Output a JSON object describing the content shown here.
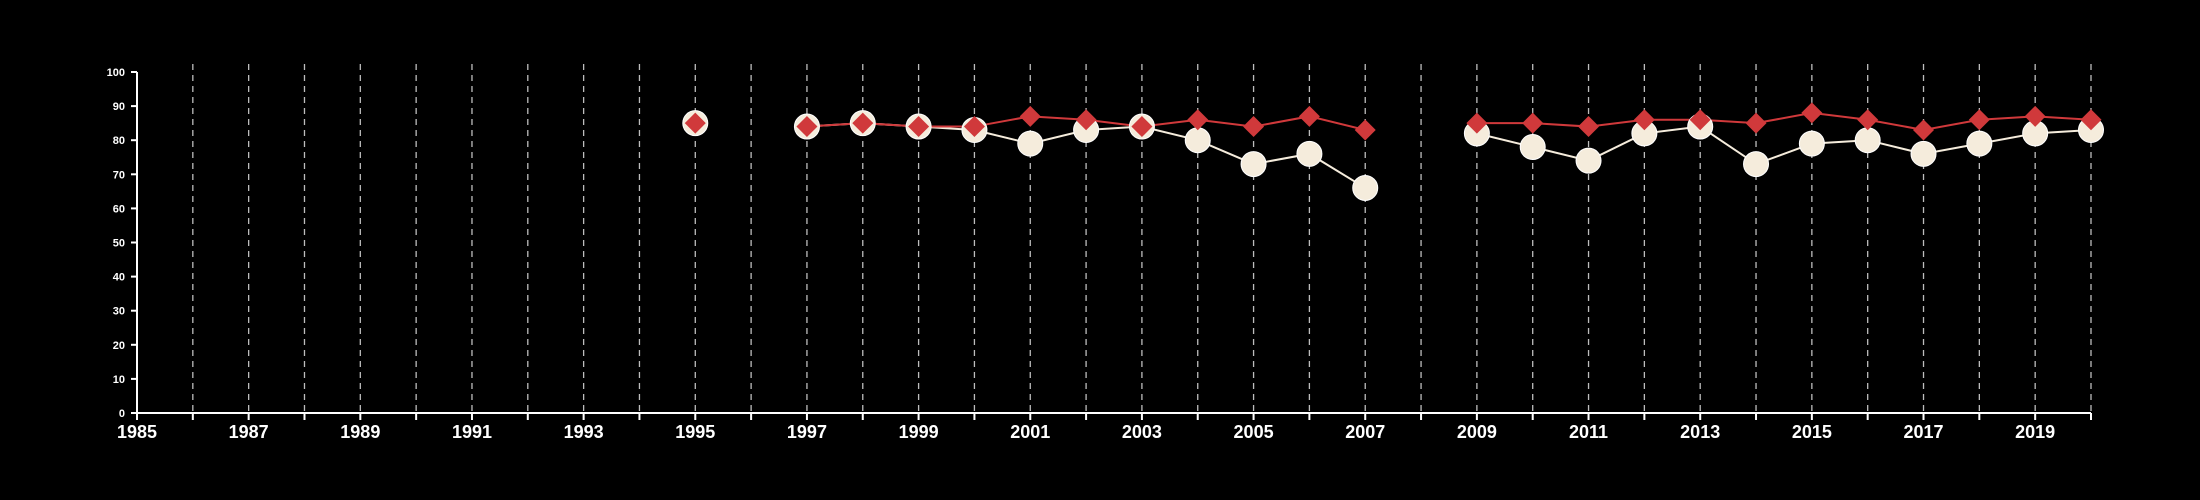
{
  "chart_data": {
    "type": "line",
    "title": "",
    "xlabel": "",
    "ylabel": "",
    "xlim": [
      1985,
      2020
    ],
    "ylim": [
      0,
      100
    ],
    "x_ticks": [
      1985,
      1987,
      1989,
      1991,
      1993,
      1995,
      1997,
      1999,
      2001,
      2003,
      2005,
      2007,
      2009,
      2011,
      2013,
      2015,
      2017,
      2019
    ],
    "y_ticks": [
      0,
      10,
      20,
      30,
      40,
      50,
      60,
      70,
      80,
      90,
      100
    ],
    "grid": "vertical dashed at every year",
    "background": "#000000",
    "series": [
      {
        "marker": "circle",
        "color": "#f5ecdc",
        "points": [
          [
            1995,
            85
          ],
          [
            1997,
            84
          ],
          [
            1998,
            85
          ],
          [
            1999,
            84
          ],
          [
            2000,
            83
          ],
          [
            2001,
            79
          ],
          [
            2002,
            83
          ],
          [
            2003,
            84
          ],
          [
            2004,
            80
          ],
          [
            2005,
            73
          ],
          [
            2006,
            76
          ],
          [
            2007,
            66
          ],
          [
            2009,
            82
          ],
          [
            2010,
            78
          ],
          [
            2011,
            74
          ],
          [
            2012,
            82
          ],
          [
            2013,
            84
          ],
          [
            2014,
            73
          ],
          [
            2015,
            79
          ],
          [
            2016,
            80
          ],
          [
            2017,
            76
          ],
          [
            2018,
            79
          ],
          [
            2019,
            82
          ],
          [
            2020,
            83
          ]
        ]
      },
      {
        "marker": "diamond",
        "color": "#d0393b",
        "points": [
          [
            1995,
            85
          ],
          [
            1997,
            84
          ],
          [
            1998,
            85
          ],
          [
            1999,
            84
          ],
          [
            2000,
            84
          ],
          [
            2001,
            87
          ],
          [
            2002,
            86
          ],
          [
            2003,
            84
          ],
          [
            2004,
            86
          ],
          [
            2005,
            84
          ],
          [
            2006,
            87
          ],
          [
            2007,
            83
          ],
          [
            2009,
            85
          ],
          [
            2010,
            85
          ],
          [
            2011,
            84
          ],
          [
            2012,
            86
          ],
          [
            2013,
            86
          ],
          [
            2014,
            85
          ],
          [
            2015,
            88
          ],
          [
            2016,
            86
          ],
          [
            2017,
            83
          ],
          [
            2018,
            86
          ],
          [
            2019,
            87
          ],
          [
            2020,
            86
          ]
        ]
      }
    ]
  }
}
